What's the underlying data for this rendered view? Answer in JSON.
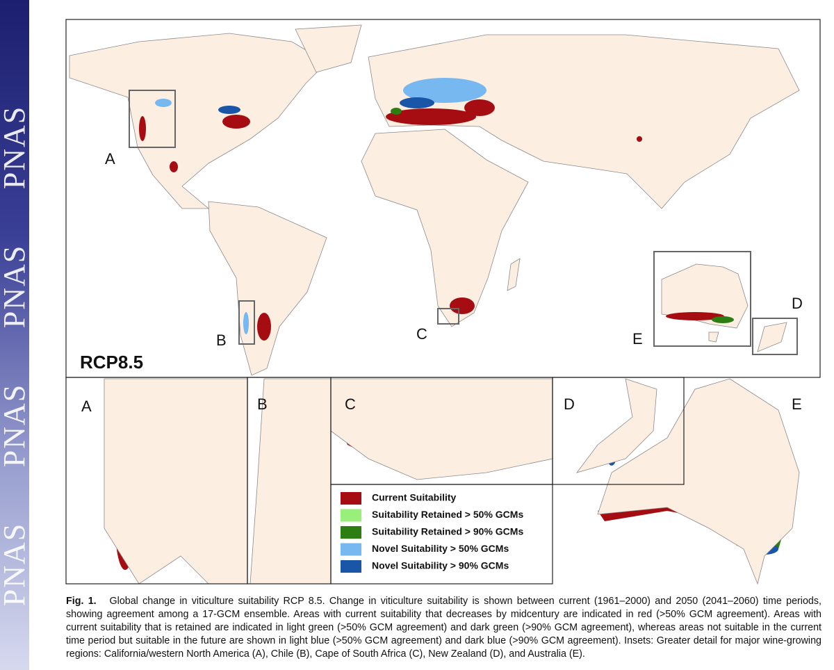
{
  "sidebar": {
    "text": "PNAS"
  },
  "map": {
    "label": "RCP8.5",
    "region_labels": [
      "A",
      "B",
      "C",
      "D",
      "E"
    ]
  },
  "insets": [
    {
      "label": "A"
    },
    {
      "label": "B"
    },
    {
      "label": "C"
    },
    {
      "label": "D"
    },
    {
      "label": "E"
    }
  ],
  "legend": [
    {
      "label": "Current Suitability",
      "color": "#a50d12"
    },
    {
      "label": "Suitability Retained > 50% GCMs",
      "color": "#98f07a"
    },
    {
      "label": "Suitability Retained > 90% GCMs",
      "color": "#2c7d12"
    },
    {
      "label": "Novel Suitability > 50% GCMs",
      "color": "#78b8f0"
    },
    {
      "label": "Novel Suitability > 90% GCMs",
      "color": "#1a56a8"
    }
  ],
  "caption": {
    "label": "Fig. 1.",
    "text": "Global change in viticulture suitability RCP 8.5. Change in viticulture suitability is shown between current (1961–2000) and 2050 (2041–2060) time periods, showing agreement among a 17-GCM ensemble. Areas with current suitability that decreases by midcentury are indicated in red (>50% GCM agreement). Areas with current suitability that is retained are indicated in light green (>50% GCM agreement) and dark green (>90% GCM agreement), whereas areas not suitable in the current time period but suitable in the future are shown in light blue (>50% GCM agreement) and dark blue (>90% GCM agreement). Insets: Greater detail for major wine-growing regions: California/western North America (A), Chile (B), Cape of South Africa (C), New Zealand (D), and Australia (E)."
  }
}
